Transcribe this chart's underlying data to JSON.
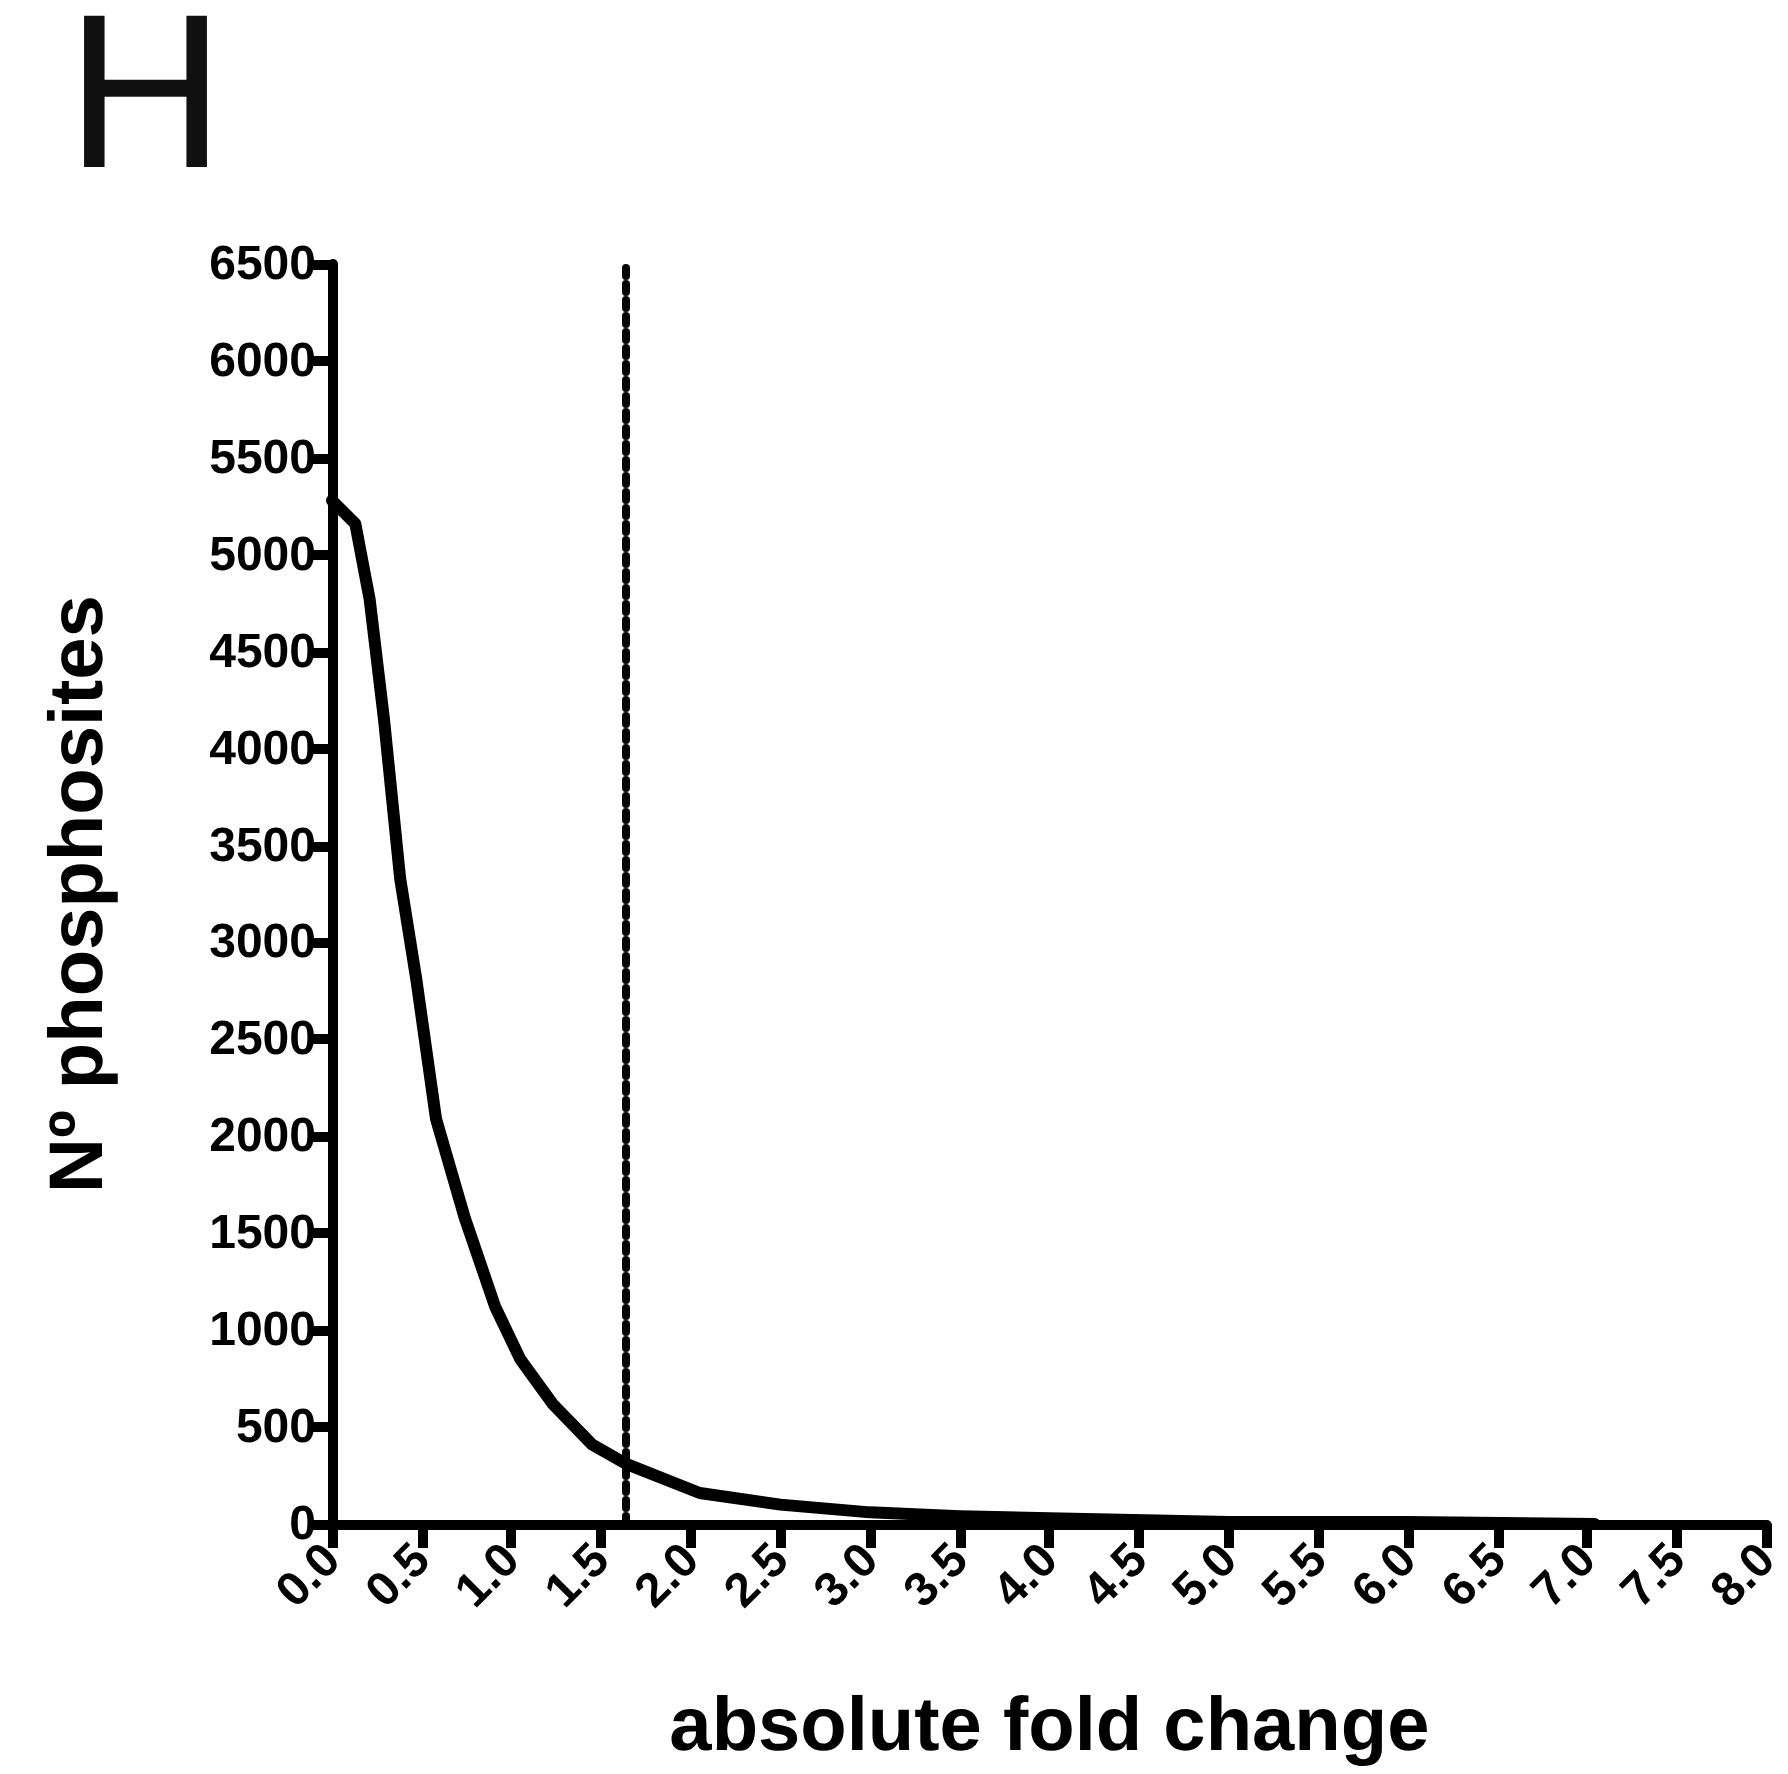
{
  "chart_data": {
    "type": "line",
    "title": "H",
    "xlabel": "absolute fold change",
    "ylabel": "Nº phosphosites",
    "x": [
      0,
      0.13,
      0.21,
      0.29,
      0.38,
      0.47,
      0.58,
      0.74,
      0.91,
      1.05,
      1.23,
      1.45,
      1.64,
      2.05,
      2.5,
      3.0,
      3.5,
      4.0,
      5.0,
      6.0,
      7.04
    ],
    "series": [
      {
        "color": "#000000",
        "values": [
          5280,
          5160,
          4770,
          4150,
          3330,
          2810,
          2090,
          1580,
          1120,
          850,
          620,
          410,
          310,
          160,
          100,
          60,
          40,
          30,
          10,
          10,
          0
        ]
      }
    ],
    "xlim": [
      0,
      8
    ],
    "xticks": [
      {
        "value": 0,
        "label": "0.0"
      },
      0.5,
      {
        "value": 1,
        "label": "1.0"
      },
      1.5,
      {
        "value": 2,
        "label": "2.0"
      },
      2.5,
      {
        "value": 3,
        "label": "3.0"
      },
      3.5,
      {
        "value": 4,
        "label": "4.0"
      },
      4.5,
      {
        "value": 5,
        "label": "5.0"
      },
      5.5,
      {
        "value": 6,
        "label": "6.0"
      },
      6.5,
      {
        "value": 7,
        "label": "7.0"
      },
      7.5,
      {
        "value": 8,
        "label": "8.0"
      }
    ],
    "ylim": [
      0,
      6500
    ],
    "yticks": [
      0,
      500,
      1000,
      1500,
      2000,
      2500,
      3000,
      3500,
      4000,
      4500,
      5000,
      5500,
      6000,
      6500
    ],
    "ref_lines": [
      {
        "axis": "x",
        "value": 1.64,
        "color": "#000000",
        "line_style": "dotted"
      }
    ],
    "grid": false,
    "marker": "none",
    "line_style": "solid"
  }
}
